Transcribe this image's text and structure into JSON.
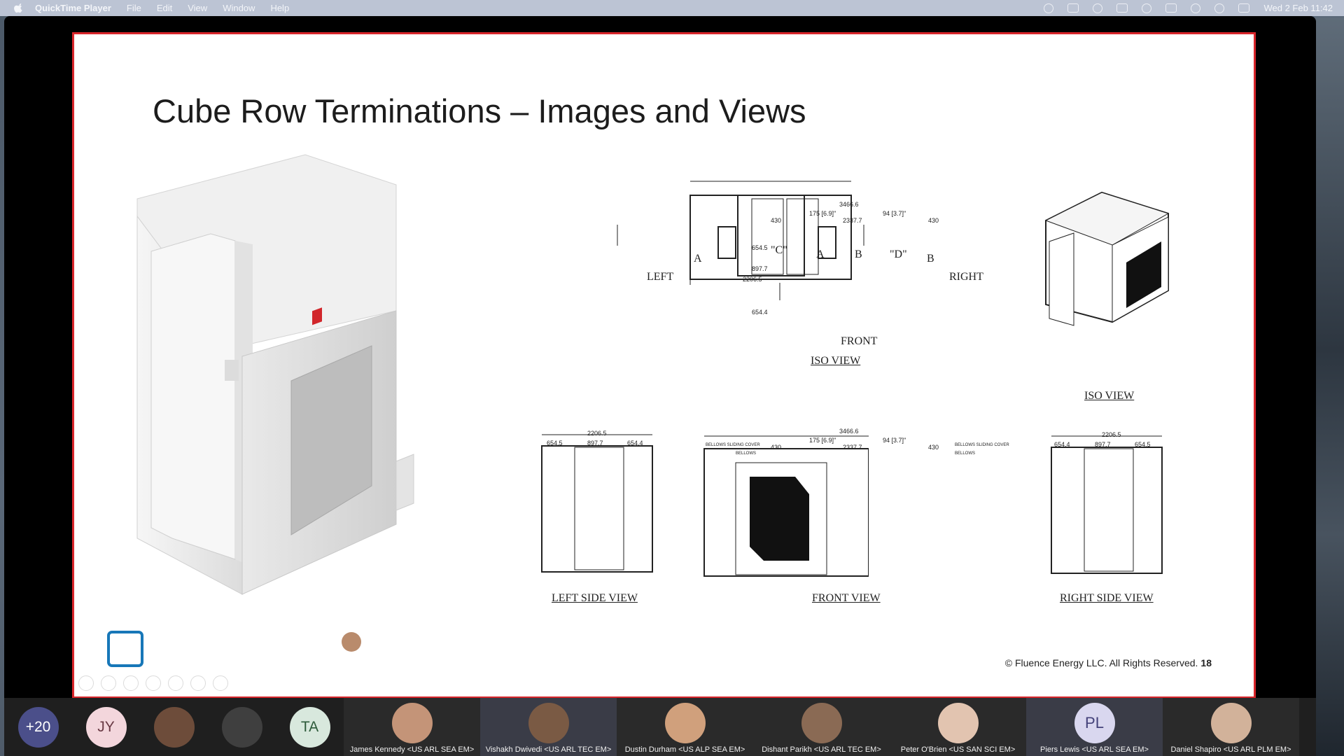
{
  "menubar": {
    "items": [
      "QuickTime Player",
      "File",
      "Edit",
      "View",
      "Window",
      "Help"
    ],
    "clock": "Wed 2 Feb  11:42"
  },
  "slide": {
    "title": "Cube Row Terminations – Images and Views",
    "footer": "© Fluence Energy LLC. All Rights Reserved.",
    "page_number": "18"
  },
  "drawing": {
    "top": {
      "overall": "3466.6",
      "d1": "175 [6.9]\"",
      "d2": "94 [3.7]\"",
      "d3": "430",
      "d4": "2337.7",
      "d5": "430",
      "v1": "654.5",
      "v2": "897.7",
      "v3": "2206.5",
      "v4": "654.4",
      "c": "\"C\"",
      "a": "A",
      "b": "B",
      "d": "\"D\"",
      "left": "LEFT",
      "right": "RIGHT",
      "front": "FRONT",
      "sec_a": "A",
      "sec_b": "B",
      "label": "ISO VIEW"
    },
    "iso_label": "ISO VIEW",
    "left_side": {
      "overall": "2206.5",
      "a": "654.5",
      "b": "897.7",
      "c": "654.4",
      "label": "LEFT SIDE VIEW"
    },
    "front": {
      "overall": "3466.6",
      "d1": "175 [6.9]\"",
      "d2": "94 [3.7]\"",
      "d3": "430",
      "d4": "2337.7",
      "d5": "430",
      "bellows_cover_l": "BELLOWS SLIDING COVER",
      "bellows_l": "BELLOWS",
      "bellows_cover_r": "BELLOWS SLIDING COVER",
      "bellows_r": "BELLOWS",
      "label": "FRONT VIEW"
    },
    "right_side": {
      "overall": "2206.5",
      "a": "654.4",
      "b": "897.7",
      "c": "654.5",
      "label": "RIGHT SIDE VIEW"
    }
  },
  "participants": {
    "overflow": "+20",
    "initials": [
      {
        "text": "JY",
        "color": "#f3d6dc"
      },
      {
        "text": "TA",
        "color": "#d8e8dd"
      }
    ],
    "tiles": [
      {
        "name": "James Kennedy <US ARL SEA EM>",
        "face": "#c49478"
      },
      {
        "name": "Vishakh Dwivedi <US ARL TEC EM>",
        "face": "#7a5a44"
      },
      {
        "name": "Dustin Durham <US ALP SEA EM>",
        "face": "#d0a07c"
      },
      {
        "name": "Dishant Parikh <US ARL TEC EM>",
        "face": "#8a6a54"
      },
      {
        "name": "Peter O'Brien <US SAN SCI EM>",
        "face": "#e2c4b0"
      },
      {
        "name": "Piers Lewis <US ARL SEA EM>",
        "initials": "PL"
      },
      {
        "name": "Daniel Shapiro <US ARL PLM EM>",
        "face": "#d2b29a"
      }
    ]
  }
}
